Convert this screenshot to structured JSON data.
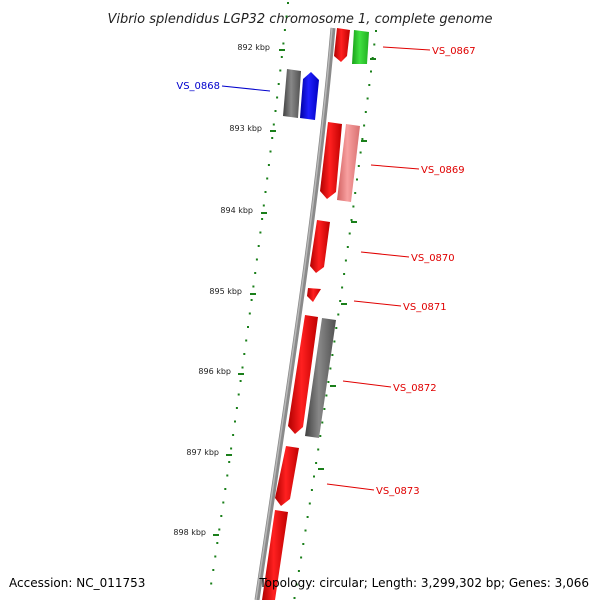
{
  "title": "Vibrio splendidus LGP32 chromosome 1, complete genome",
  "scale_labels": [
    "892 kbp",
    "893 kbp",
    "894 kbp",
    "895 kbp",
    "896 kbp",
    "897 kbp",
    "898 kbp"
  ],
  "gene_labels": [
    {
      "text": "VS_0867",
      "color": "#e00000"
    },
    {
      "text": "VS_0868",
      "color": "#0000cc"
    },
    {
      "text": "VS_0869",
      "color": "#e00000"
    },
    {
      "text": "VS_0870",
      "color": "#e00000"
    },
    {
      "text": "VS_0871",
      "color": "#e00000"
    },
    {
      "text": "VS_0872",
      "color": "#e00000"
    },
    {
      "text": "VS_0873",
      "color": "#e00000"
    }
  ],
  "footer": {
    "accession": "Accession: NC_011753",
    "topology": "Topology: circular; Length: 3,299,302 bp; Genes: 3,066"
  },
  "colors": {
    "backbone": "#808080",
    "tick": "#1a7f1a",
    "red": "#ff0000",
    "pink": "#f08080",
    "green": "#22cc22",
    "blue": "#0000ff",
    "gray": "#606060"
  }
}
